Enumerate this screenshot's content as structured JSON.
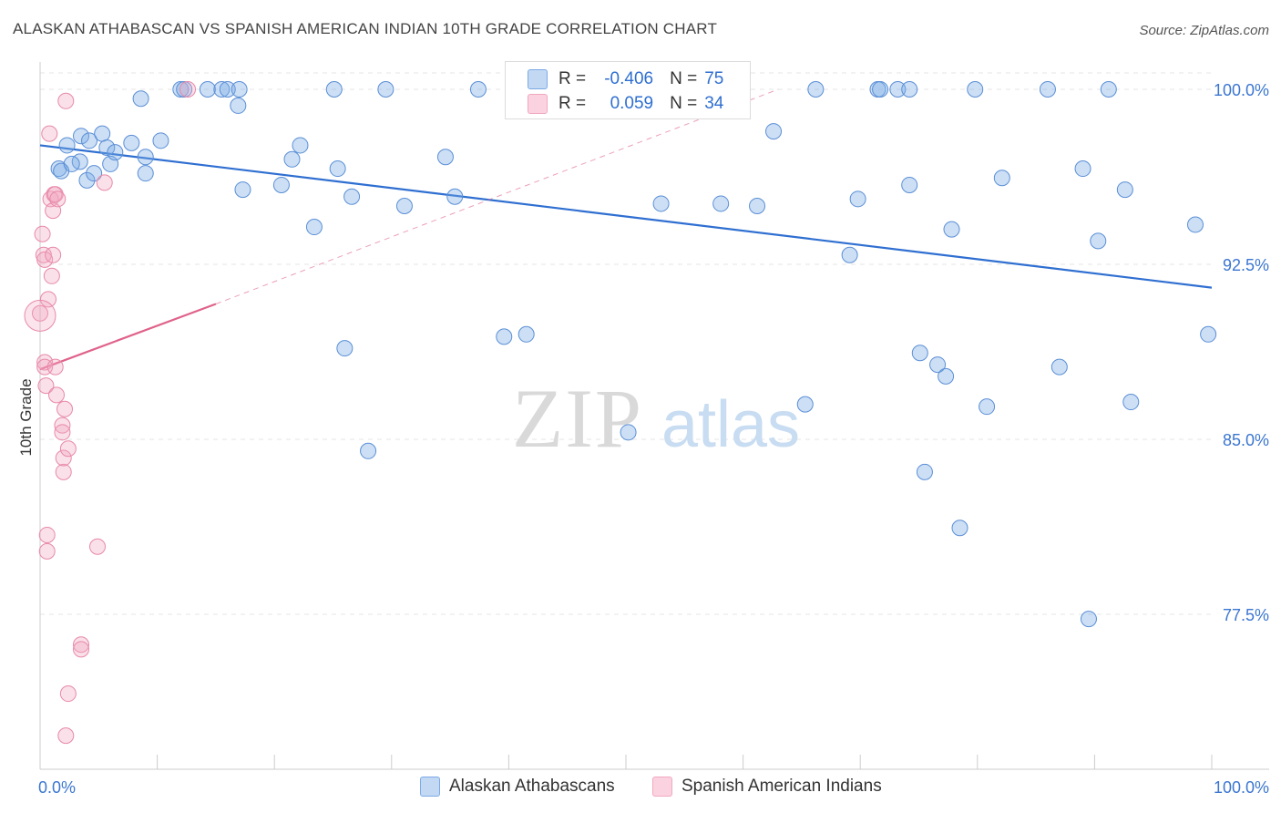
{
  "title": "ALASKAN ATHABASCAN VS SPANISH AMERICAN INDIAN 10TH GRADE CORRELATION CHART",
  "source": "Source: ZipAtlas.com",
  "watermark": {
    "zip": "ZIP",
    "atlas": "atlas"
  },
  "legend": {
    "rows": [
      {
        "r_label": "R =",
        "r_value": "-0.406",
        "n_label": "N =",
        "n_value": "75",
        "color": "#7aaae6"
      },
      {
        "r_label": "R =",
        "r_value": "0.059",
        "n_label": "N =",
        "n_value": "34",
        "color": "#f2a7bf"
      }
    ]
  },
  "bottom_legend": [
    {
      "label": "Alaskan Athabascans",
      "color": "#7aaae6"
    },
    {
      "label": "Spanish American Indians",
      "color": "#f2a7bf"
    }
  ],
  "chart_data": {
    "type": "scatter",
    "title": "ALASKAN ATHABASCAN VS SPANISH AMERICAN INDIAN 10TH GRADE CORRELATION CHART",
    "xlabel": "",
    "ylabel": "10th Grade",
    "xlim": [
      0,
      100
    ],
    "ylim": [
      70,
      101.5
    ],
    "x_tick_labels": [
      "0.0%",
      "100.0%"
    ],
    "y_ticks": [
      77.5,
      85.0,
      92.5,
      100.0
    ],
    "y_tick_labels": [
      "77.5%",
      "85.0%",
      "92.5%",
      "100.0%"
    ],
    "grid": true,
    "legend_position": "top-center",
    "series": [
      {
        "name": "Alaskan Athabascans",
        "color": "#7aaae6",
        "stroke": "#5b8fd6",
        "trend": {
          "x": [
            0,
            100
          ],
          "y": [
            97.6,
            91.5
          ],
          "style": "solid",
          "color": "#2f6fd1"
        },
        "points": [
          [
            1.6,
            96.6
          ],
          [
            2.3,
            97.6
          ],
          [
            1.8,
            96.5
          ],
          [
            3.4,
            96.9
          ],
          [
            2.7,
            96.8
          ],
          [
            3.5,
            98.0
          ],
          [
            4.0,
            96.1
          ],
          [
            4.2,
            97.8
          ],
          [
            4.6,
            96.4
          ],
          [
            5.3,
            98.1
          ],
          [
            5.7,
            97.5
          ],
          [
            6.0,
            96.8
          ],
          [
            6.4,
            97.3
          ],
          [
            7.8,
            97.7
          ],
          [
            9.0,
            97.1
          ],
          [
            9.0,
            96.4
          ],
          [
            10.3,
            97.8
          ],
          [
            8.6,
            99.6
          ],
          [
            12.0,
            100.0
          ],
          [
            12.3,
            100.0
          ],
          [
            14.3,
            100.0
          ],
          [
            15.5,
            100.0
          ],
          [
            16.0,
            100.0
          ],
          [
            17.0,
            100.0
          ],
          [
            16.9,
            99.3
          ],
          [
            17.3,
            95.7
          ],
          [
            20.6,
            95.9
          ],
          [
            21.5,
            97.0
          ],
          [
            22.2,
            97.6
          ],
          [
            23.4,
            94.1
          ],
          [
            25.4,
            96.6
          ],
          [
            25.1,
            100.0
          ],
          [
            26.6,
            95.4
          ],
          [
            29.5,
            100.0
          ],
          [
            31.1,
            95.0
          ],
          [
            34.6,
            97.1
          ],
          [
            35.4,
            95.4
          ],
          [
            37.4,
            100.0
          ],
          [
            39.6,
            89.4
          ],
          [
            41.5,
            89.5
          ],
          [
            26.0,
            88.9
          ],
          [
            28.0,
            84.5
          ],
          [
            50.2,
            85.3
          ],
          [
            53.0,
            95.1
          ],
          [
            58.1,
            95.1
          ],
          [
            61.2,
            95.0
          ],
          [
            62.6,
            98.2
          ],
          [
            65.3,
            86.5
          ],
          [
            66.2,
            100.0
          ],
          [
            69.1,
            92.9
          ],
          [
            69.8,
            95.3
          ],
          [
            71.5,
            100.0
          ],
          [
            71.7,
            100.0
          ],
          [
            73.2,
            100.0
          ],
          [
            74.2,
            100.0
          ],
          [
            74.2,
            95.9
          ],
          [
            75.1,
            88.7
          ],
          [
            75.5,
            83.6
          ],
          [
            76.6,
            88.2
          ],
          [
            77.3,
            87.7
          ],
          [
            77.8,
            94.0
          ],
          [
            78.5,
            81.2
          ],
          [
            79.8,
            100.0
          ],
          [
            80.8,
            86.4
          ],
          [
            82.1,
            96.2
          ],
          [
            86.0,
            100.0
          ],
          [
            87.0,
            88.1
          ],
          [
            89.0,
            96.6
          ],
          [
            89.5,
            77.3
          ],
          [
            90.3,
            93.5
          ],
          [
            91.2,
            100.0
          ],
          [
            92.6,
            95.7
          ],
          [
            93.1,
            86.6
          ],
          [
            98.6,
            94.2
          ],
          [
            99.7,
            89.5
          ]
        ]
      },
      {
        "name": "Spanish American Indians",
        "color": "#f2a7bf",
        "stroke": "#e889a8",
        "trend": {
          "x": [
            0,
            15
          ],
          "y": [
            88.0,
            90.8
          ],
          "style": "solid",
          "color": "#e0628a",
          "extension": {
            "x": [
              15,
              63
            ],
            "y": [
              90.8,
              100.0
            ],
            "style": "dashed"
          }
        },
        "points": [
          [
            0.0,
            90.4
          ],
          [
            0.2,
            93.8
          ],
          [
            0.3,
            92.9
          ],
          [
            0.4,
            92.7
          ],
          [
            0.4,
            88.3
          ],
          [
            0.4,
            88.1
          ],
          [
            0.5,
            87.3
          ],
          [
            0.6,
            80.9
          ],
          [
            0.6,
            80.2
          ],
          [
            0.7,
            91.0
          ],
          [
            0.8,
            98.1
          ],
          [
            0.9,
            95.3
          ],
          [
            1.0,
            92.0
          ],
          [
            1.1,
            94.8
          ],
          [
            1.2,
            95.5
          ],
          [
            1.3,
            95.5
          ],
          [
            1.3,
            88.1
          ],
          [
            1.4,
            86.9
          ],
          [
            1.5,
            95.3
          ],
          [
            1.9,
            85.6
          ],
          [
            1.9,
            85.3
          ],
          [
            2.0,
            83.6
          ],
          [
            2.0,
            84.2
          ],
          [
            2.1,
            86.3
          ],
          [
            2.2,
            72.3
          ],
          [
            2.2,
            99.5
          ],
          [
            2.4,
            74.1
          ],
          [
            2.4,
            84.6
          ],
          [
            3.5,
            76.2
          ],
          [
            3.5,
            76.0
          ],
          [
            4.9,
            80.4
          ],
          [
            5.5,
            96.0
          ],
          [
            12.6,
            100.0
          ],
          [
            1.1,
            92.9
          ]
        ]
      }
    ]
  }
}
